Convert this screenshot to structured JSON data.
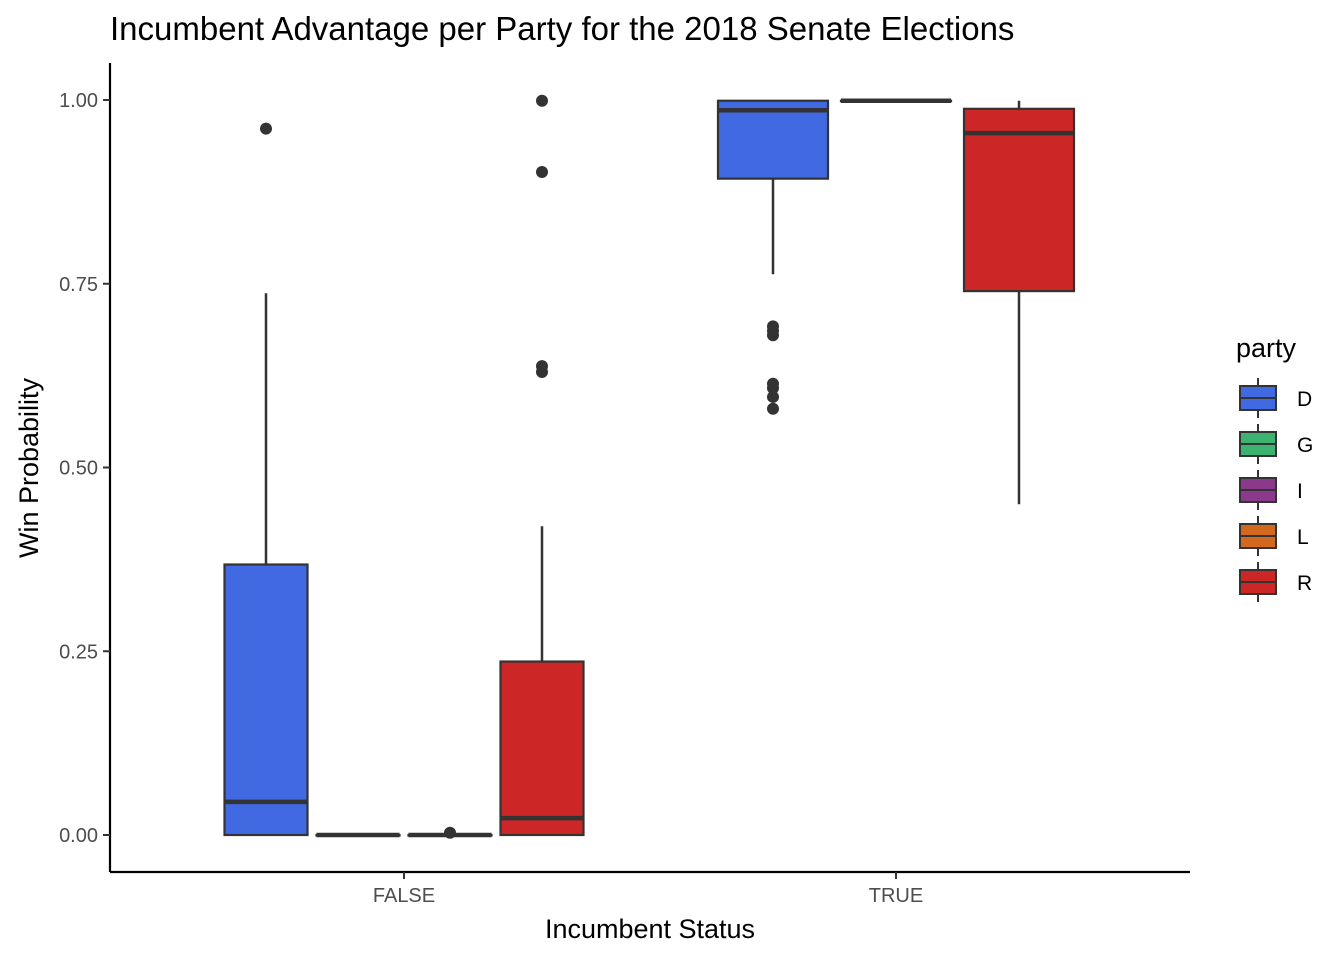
{
  "chart_data": {
    "type": "boxplot",
    "title": "Incumbent Advantage per Party for the 2018 Senate Elections",
    "xlabel": "Incumbent Status",
    "ylabel": "Win Probability",
    "categories": [
      "FALSE",
      "TRUE"
    ],
    "ylim": [
      -0.05,
      1.05
    ],
    "yticks": [
      0,
      0.25,
      0.5,
      0.75,
      1.0
    ],
    "ytick_labels": [
      "0.00",
      "0.25",
      "0.50",
      "0.75",
      "1.00"
    ],
    "grid": false,
    "legend": {
      "title": "party",
      "placement": "right",
      "entries": [
        {
          "name": "D",
          "color": "#4169E1"
        },
        {
          "name": "G",
          "color": "#3CB371"
        },
        {
          "name": "I",
          "color": "#8B3A8B"
        },
        {
          "name": "L",
          "color": "#D2691E"
        },
        {
          "name": "R",
          "color": "#CD2626"
        }
      ]
    },
    "groups": [
      {
        "category": "FALSE",
        "boxes": [
          {
            "party": "D",
            "q1": 0.0,
            "median": 0.045,
            "q3": 0.368,
            "whisker_low": 0.0,
            "whisker_high": 0.737,
            "outliers": [
              0.961
            ]
          },
          {
            "party": "L",
            "q1": 0.0,
            "median": 0.0,
            "q3": 0.0,
            "whisker_low": 0.0,
            "whisker_high": 0.0,
            "outliers": []
          },
          {
            "party": "I",
            "q1": 0.0,
            "median": 0.0,
            "q3": 0.0,
            "whisker_low": 0.0,
            "whisker_high": 0.0,
            "outliers": [
              0.003
            ]
          },
          {
            "party": "R",
            "q1": 0.0,
            "median": 0.023,
            "q3": 0.236,
            "whisker_low": 0.0,
            "whisker_high": 0.42,
            "outliers": [
              0.63,
              0.638,
              0.902,
              0.999
            ]
          }
        ]
      },
      {
        "category": "TRUE",
        "boxes": [
          {
            "party": "D",
            "q1": 0.893,
            "median": 0.986,
            "q3": 0.999,
            "whisker_low": 0.763,
            "whisker_high": 0.999,
            "outliers": [
              0.58,
              0.596,
              0.608,
              0.614,
              0.68,
              0.686,
              0.692
            ]
          },
          {
            "party": "I",
            "q1": 0.999,
            "median": 0.999,
            "q3": 0.999,
            "whisker_low": 0.999,
            "whisker_high": 0.999,
            "outliers": []
          },
          {
            "party": "R",
            "q1": 0.74,
            "median": 0.955,
            "q3": 0.988,
            "whisker_low": 0.45,
            "whisker_high": 0.999,
            "outliers": []
          }
        ]
      }
    ]
  }
}
